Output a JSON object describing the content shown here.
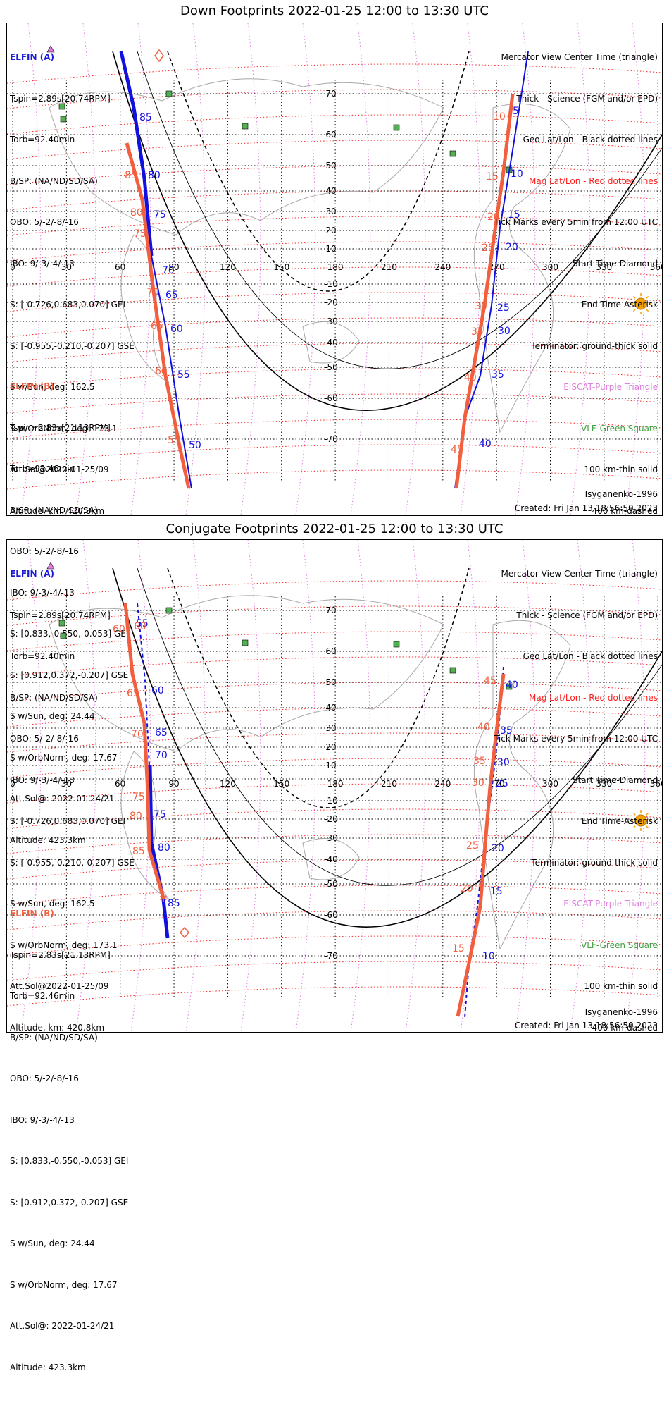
{
  "panels": [
    {
      "title": "Down Footprints 2022-01-25 12:00 to 13:30 UTC",
      "elfin_a": {
        "header": "ELFIN (A)",
        "lines": [
          "Tspin=2.89s[20.74RPM]",
          "Torb=92.40min",
          "B/SP: (NA/ND/SD/SA)",
          "OBO: 5/-2/-8/-16",
          "IBO: 9/-3/-4/-13",
          "S: [-0.726,0.683,0.070] GEI",
          "S: [-0.955,-0.210,-0.207] GSE",
          "S w/Sun, deg: 162.5",
          "S w/OrbNorm, deg: 173.1",
          "Att.Sol@2022-01-25/09",
          "Altitude, km: 420.8km"
        ]
      },
      "elfin_b": {
        "header": "ELFIN (B)",
        "lines": [
          "Tspin=2.83s[21.13RPM]",
          "Torb=92.46min",
          "B/SP: (NA/ND/SD/SA)",
          "OBO: 5/-2/-8/-16",
          "IBO: 9/-3/-4/-13",
          "S: [0.833,-0.550,-0.053] GEI",
          "S: [0.912,0.372,-0.207] GSE",
          "S w/Sun, deg: 24.44",
          "S w/OrbNorm, deg: 17.67",
          "Att.Sol@: 2022-01-24/21",
          "Altitude: 423.3km"
        ]
      },
      "model": "Tsyganenko-1996",
      "created": "Created: Fri Jan 13 18:56:50 2023",
      "tick_a_west": [
        "85",
        "80",
        "75",
        "70",
        "65",
        "60",
        "55",
        "50"
      ],
      "tick_b_west": [
        "85",
        "80",
        "75",
        "70",
        "65",
        "60",
        "55"
      ],
      "tick_b_east": [
        "10",
        "15",
        "20",
        "25",
        "30",
        "35",
        "40",
        "45"
      ],
      "tick_a_east": [
        "5",
        "10",
        "15",
        "20",
        "25",
        "30",
        "35",
        "40"
      ]
    },
    {
      "title": "Conjugate Footprints 2022-01-25 12:00 to 13:30 UTC",
      "elfin_a": {
        "header": "ELFIN (A)",
        "lines": [
          "Tspin=2.89s[20.74RPM]",
          "Torb=92.40min",
          "B/SP: (NA/ND/SD/SA)",
          "OBO: 5/-2/-8/-16",
          "IBO: 9/-3/-4/-13",
          "S: [-0.726,0.683,0.070] GEI",
          "S: [-0.955,-0.210,-0.207] GSE",
          "S w/Sun, deg: 162.5",
          "S w/OrbNorm, deg: 173.1",
          "Att.Sol@2022-01-25/09",
          "Altitude, km: 420.8km"
        ]
      },
      "elfin_b": {
        "header": "ELFIN (B)",
        "lines": [
          "Tspin=2.83s[21.13RPM]",
          "Torb=92.46min",
          "B/SP: (NA/ND/SD/SA)",
          "OBO: 5/-2/-8/-16",
          "IBO: 9/-3/-4/-13",
          "S: [0.833,-0.550,-0.053] GEI",
          "S: [0.912,0.372,-0.207] GSE",
          "S w/Sun, deg: 24.44",
          "S w/OrbNorm, deg: 17.67",
          "Att.Sol@: 2022-01-24/21",
          "Altitude: 423.3km"
        ]
      },
      "model": "Tsyganenko-1996",
      "created": "Created: Fri Jan 13 18:56:50 2023",
      "tick_a_west": [
        "55",
        "60",
        "65",
        "70",
        "75",
        "80",
        "85"
      ],
      "tick_b_west": [
        "60",
        "65",
        "70",
        "75",
        "80",
        "85"
      ],
      "tick_b_east": [
        "45",
        "40",
        "35",
        "30",
        "25",
        "20",
        "15"
      ],
      "tick_a_east": [
        "40",
        "35",
        "30",
        "25",
        "20",
        "15",
        "10"
      ]
    }
  ],
  "legend": [
    {
      "text": "Mercator View Center Time (triangle)",
      "color": "#000000"
    },
    {
      "text": "Thick - Science (FGM and/or EPD)",
      "color": "#000000"
    },
    {
      "text": "Geo Lat/Lon - Black dotted lines",
      "color": "#000000"
    },
    {
      "text": "Mag Lat/Lon - Red dotted lines",
      "color": "#ff1f1f"
    },
    {
      "text": "Tick Marks every 5min from 12:00 UTC",
      "color": "#000000"
    },
    {
      "text": "Start Time-Diamond",
      "color": "#000000"
    },
    {
      "text": "End Time-Asterisk",
      "color": "#000000"
    },
    {
      "text": "Terminator: ground-thick solid",
      "color": "#000000"
    },
    {
      "text": "EISCAT-Purple Triangle",
      "color": "#e07ee0"
    },
    {
      "text": "VLF-Green Square",
      "color": "#3fa03f"
    },
    {
      "text": "100 km-thin solid",
      "color": "#000000"
    },
    {
      "text": "400 km-dashed",
      "color": "#000000"
    }
  ],
  "axis": {
    "lon_labels": [
      "0",
      "30",
      "60",
      "90",
      "120",
      "150",
      "180",
      "210",
      "240",
      "270",
      "300",
      "330",
      "360"
    ],
    "lat_labels": [
      "70",
      "60",
      "50",
      "40",
      "30",
      "20",
      "10",
      "-10",
      "-20",
      "-30",
      "-40",
      "-50",
      "-60",
      "-70"
    ]
  },
  "colors": {
    "elfin_a": "#1010e0",
    "elfin_b": "#f25f3f",
    "geo_grid": "#000000",
    "mag_grid": "#ff2020",
    "vlf": "#3fa03f",
    "eiscat": "#e07ee0",
    "sun": "#f5a000"
  },
  "icons": {
    "sun": "sun-icon",
    "vlf": "vlf-square-icon",
    "eiscat": "eiscat-triangle-icon"
  }
}
